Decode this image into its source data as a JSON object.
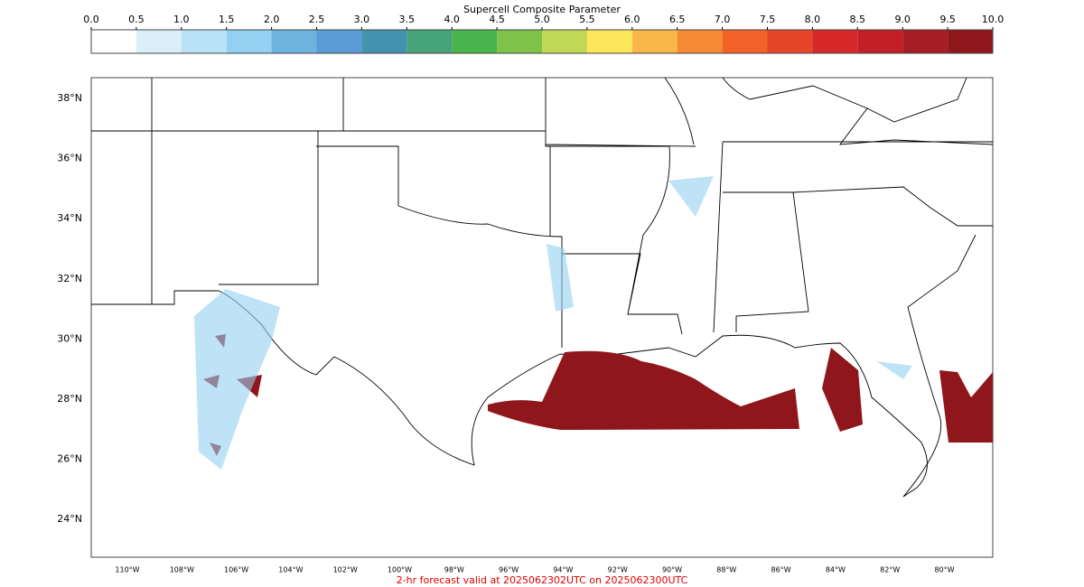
{
  "colorbar": {
    "title": "Supercell Composite Parameter",
    "ticks": [
      {
        "value": 0,
        "label": "0.0"
      },
      {
        "value": 0.5,
        "label": "0.5"
      },
      {
        "value": 1,
        "label": "1.0"
      },
      {
        "value": 1.5,
        "label": "1.5"
      },
      {
        "value": 2,
        "label": "2.0"
      },
      {
        "value": 2.5,
        "label": "2.5"
      },
      {
        "value": 3,
        "label": "3.0"
      },
      {
        "value": 3.5,
        "label": "3.5"
      },
      {
        "value": 4,
        "label": "4.0"
      },
      {
        "value": 4.5,
        "label": "4.5"
      },
      {
        "value": 5,
        "label": "5.0"
      },
      {
        "value": 5.5,
        "label": "5.5"
      },
      {
        "value": 6,
        "label": "6.0"
      },
      {
        "value": 6.5,
        "label": "6.5"
      },
      {
        "value": 7,
        "label": "7.0"
      },
      {
        "value": 7.5,
        "label": "7.5"
      },
      {
        "value": 8,
        "label": "8.0"
      },
      {
        "value": 8.5,
        "label": "8.5"
      },
      {
        "value": 9,
        "label": "9.0"
      },
      {
        "value": 9.5,
        "label": "9.5"
      },
      {
        "value": 10,
        "label": "10.0"
      }
    ],
    "colors": [
      "#ffffff",
      "#dbeffb",
      "#b9e2f7",
      "#93d0f1",
      "#6db3e0",
      "#5b9bd5",
      "#4393b0",
      "#46a37a",
      "#49b34c",
      "#7fc24a",
      "#c1d855",
      "#fce65a",
      "#f9b649",
      "#f68a35",
      "#f26228",
      "#e64528",
      "#d8292a",
      "#c21f27",
      "#a71d23",
      "#8f161b"
    ]
  },
  "map": {
    "lat_labels": [
      "38°N",
      "36°N",
      "34°N",
      "32°N",
      "30°N",
      "28°N",
      "26°N",
      "24°N"
    ],
    "lon_labels": [
      "110°W",
      "108°W",
      "106°W",
      "104°W",
      "102°W",
      "100°W",
      "98°W",
      "96°W",
      "94°W",
      "92°W",
      "90°W",
      "88°W",
      "86°W",
      "84°W",
      "82°W",
      "80°W"
    ]
  },
  "footer": "2-hr forecast valid at 2025062302UTC on 2025062300UTC"
}
